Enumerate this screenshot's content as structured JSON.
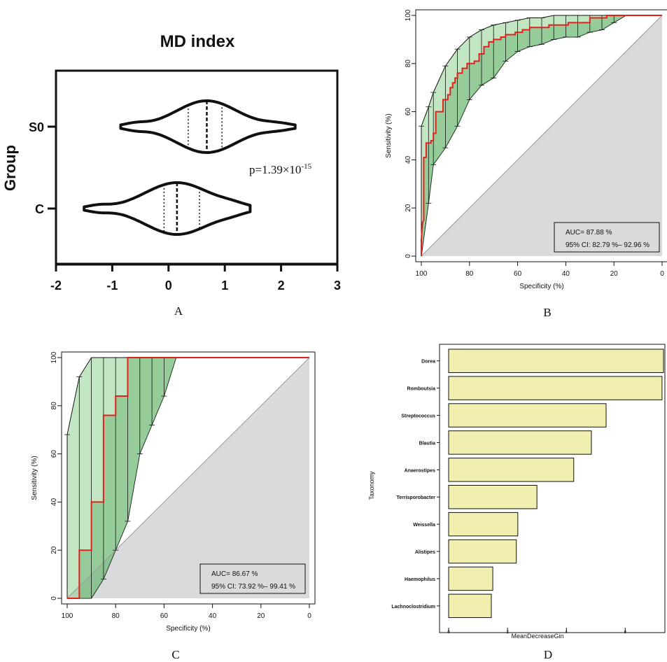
{
  "chart_data": [
    {
      "panel": "A",
      "type": "violin",
      "title": "MD index",
      "ylabel": "Group",
      "categories": [
        "S0",
        "C"
      ],
      "xlim": [
        -2,
        3
      ],
      "xticks": [
        "-2",
        "-1",
        "0",
        "1",
        "2",
        "3"
      ],
      "annotation": {
        "p_text": "p=1.39×10",
        "p_exp": "-15"
      },
      "series": [
        {
          "group": "S0",
          "min": -0.85,
          "q1": 0.35,
          "median": 0.68,
          "q3": 0.95,
          "max": 2.25
        },
        {
          "group": "C",
          "min": -1.5,
          "q1": -0.08,
          "median": 0.15,
          "q3": 0.55,
          "max": 1.45
        }
      ],
      "panel_label": "A"
    },
    {
      "panel": "B",
      "type": "line",
      "xlabel": "Specificity (%)",
      "ylabel": "Sensitivity (%)",
      "xlim": [
        100,
        0
      ],
      "ylim": [
        0,
        100
      ],
      "xticks": [
        "100",
        "80",
        "60",
        "40",
        "20",
        "0"
      ],
      "yticks": [
        "0",
        "20",
        "40",
        "60",
        "80",
        "100"
      ],
      "auc_text": "AUC= 87.88 %",
      "ci_text": "95% CI: 82.79 %– 92.96 %",
      "roc": [
        [
          100,
          0
        ],
        [
          100,
          7
        ],
        [
          99.5,
          14
        ],
        [
          99,
          15
        ],
        [
          99,
          41
        ],
        [
          98,
          41
        ],
        [
          98,
          47
        ],
        [
          96,
          47
        ],
        [
          96,
          48
        ],
        [
          95,
          48
        ],
        [
          95,
          51
        ],
        [
          94,
          51
        ],
        [
          94,
          60
        ],
        [
          91,
          60
        ],
        [
          91,
          65
        ],
        [
          89,
          65
        ],
        [
          89,
          67
        ],
        [
          88,
          67
        ],
        [
          88,
          70
        ],
        [
          87,
          70
        ],
        [
          87,
          72
        ],
        [
          86,
          72
        ],
        [
          86,
          74
        ],
        [
          85,
          74
        ],
        [
          85,
          76
        ],
        [
          83,
          76
        ],
        [
          83,
          78
        ],
        [
          81,
          78
        ],
        [
          81,
          80
        ],
        [
          78,
          80
        ],
        [
          78,
          81
        ],
        [
          76,
          81
        ],
        [
          76,
          84
        ],
        [
          74,
          84
        ],
        [
          74,
          87
        ],
        [
          72,
          87
        ],
        [
          72,
          89
        ],
        [
          70,
          89
        ],
        [
          70,
          90
        ],
        [
          67,
          90
        ],
        [
          67,
          91
        ],
        [
          65,
          91
        ],
        [
          65,
          92
        ],
        [
          61,
          92
        ],
        [
          61,
          93
        ],
        [
          58,
          93
        ],
        [
          58,
          94
        ],
        [
          55,
          94
        ],
        [
          55,
          95
        ],
        [
          47,
          95
        ],
        [
          47,
          96
        ],
        [
          39,
          96
        ],
        [
          39,
          97
        ],
        [
          30,
          97
        ],
        [
          30,
          99
        ],
        [
          23,
          99
        ],
        [
          23,
          100
        ],
        [
          0,
          100
        ]
      ],
      "ci_specificity": [
        100,
        97,
        95,
        90,
        85,
        80,
        75,
        70,
        65,
        60,
        55,
        50,
        45,
        40,
        35,
        30,
        25,
        20,
        15,
        10,
        5,
        0
      ],
      "ci_lower": [
        0,
        22,
        38,
        45,
        54,
        65,
        71,
        74,
        81,
        85,
        87,
        88,
        90,
        91,
        91,
        93,
        94,
        97,
        100,
        100,
        100,
        100
      ],
      "ci_upper": [
        54,
        62,
        68,
        79,
        86,
        91,
        94,
        96,
        97,
        98,
        99,
        99,
        100,
        100,
        100,
        100,
        100,
        100,
        100,
        100,
        100,
        100
      ],
      "panel_label": "B"
    },
    {
      "panel": "C",
      "type": "line",
      "xlabel": "Specificity (%)",
      "ylabel": "Sensitivity (%)",
      "xlim": [
        100,
        0
      ],
      "ylim": [
        0,
        100
      ],
      "xticks": [
        "100",
        "80",
        "60",
        "40",
        "20",
        "0"
      ],
      "yticks": [
        "0",
        "20",
        "40",
        "60",
        "80",
        "100"
      ],
      "auc_text": "AUC= 86.67 %",
      "ci_text": "95% CI: 73.92 %– 99.41 %",
      "roc": [
        [
          100,
          0
        ],
        [
          95,
          0
        ],
        [
          95,
          20
        ],
        [
          90,
          20
        ],
        [
          90,
          40
        ],
        [
          85,
          40
        ],
        [
          85,
          76
        ],
        [
          80,
          76
        ],
        [
          80,
          84
        ],
        [
          75,
          84
        ],
        [
          75,
          100
        ],
        [
          0,
          100
        ]
      ],
      "ci_specificity": [
        100,
        95,
        90,
        85,
        80,
        75,
        70,
        65,
        60,
        55,
        50,
        0
      ],
      "ci_lower": [
        0,
        0,
        0,
        8,
        20,
        32,
        60,
        72,
        84,
        100,
        100,
        100
      ],
      "ci_upper": [
        68,
        92,
        100,
        100,
        100,
        100,
        100,
        100,
        100,
        100,
        100,
        100
      ],
      "panel_label": "C"
    },
    {
      "panel": "D",
      "type": "bar",
      "orientation": "horizontal",
      "xlabel": "MeanDecreaseGin",
      "ylabel": "Taxonomy",
      "xlim": [
        0,
        7.3
      ],
      "xticks": [
        "0",
        "2",
        "4",
        "6"
      ],
      "categories": [
        "Dorea",
        "Romboutsia",
        "Streptococcus",
        "Blautia",
        "Anaerostipes",
        "Terrisporobacter",
        "Weissella",
        "Alistipes",
        "Haemophilus",
        "Lachnoclostridium"
      ],
      "values": [
        7.3,
        7.25,
        5.35,
        4.85,
        4.25,
        3.0,
        2.35,
        2.3,
        1.5,
        1.45
      ],
      "bar_color": "#f0efb0",
      "panel_label": "D"
    }
  ]
}
